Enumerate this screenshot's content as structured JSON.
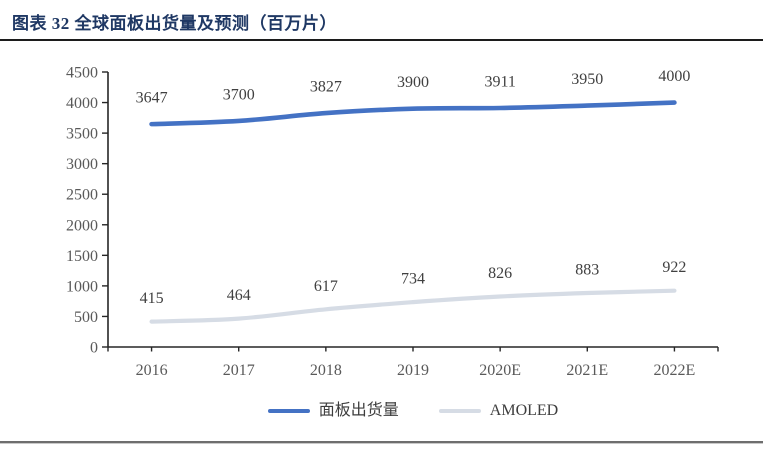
{
  "page": {
    "title": "图表 32 全球面板出货量及预测（百万片）"
  },
  "chart_data": {
    "type": "line",
    "title": "图表 32 全球面板出货量及预测（百万片）",
    "categories": [
      "2016",
      "2017",
      "2018",
      "2019",
      "2020E",
      "2021E",
      "2022E"
    ],
    "series": [
      {
        "name": "面板出货量",
        "color": "#4472C4",
        "values": [
          3647,
          3700,
          3827,
          3900,
          3911,
          3950,
          4000
        ]
      },
      {
        "name": "AMOLED",
        "color": "#D6DCE5",
        "values": [
          415,
          464,
          617,
          734,
          826,
          883,
          922
        ]
      }
    ],
    "ylim": [
      0,
      4500
    ],
    "ytick_step": 500,
    "grid": false,
    "data_labels": true,
    "smoothed_lines": true,
    "legend_position": "bottom",
    "axis_color": "#262626",
    "axis_label_color": "#595959",
    "data_label_color": "#404040"
  }
}
